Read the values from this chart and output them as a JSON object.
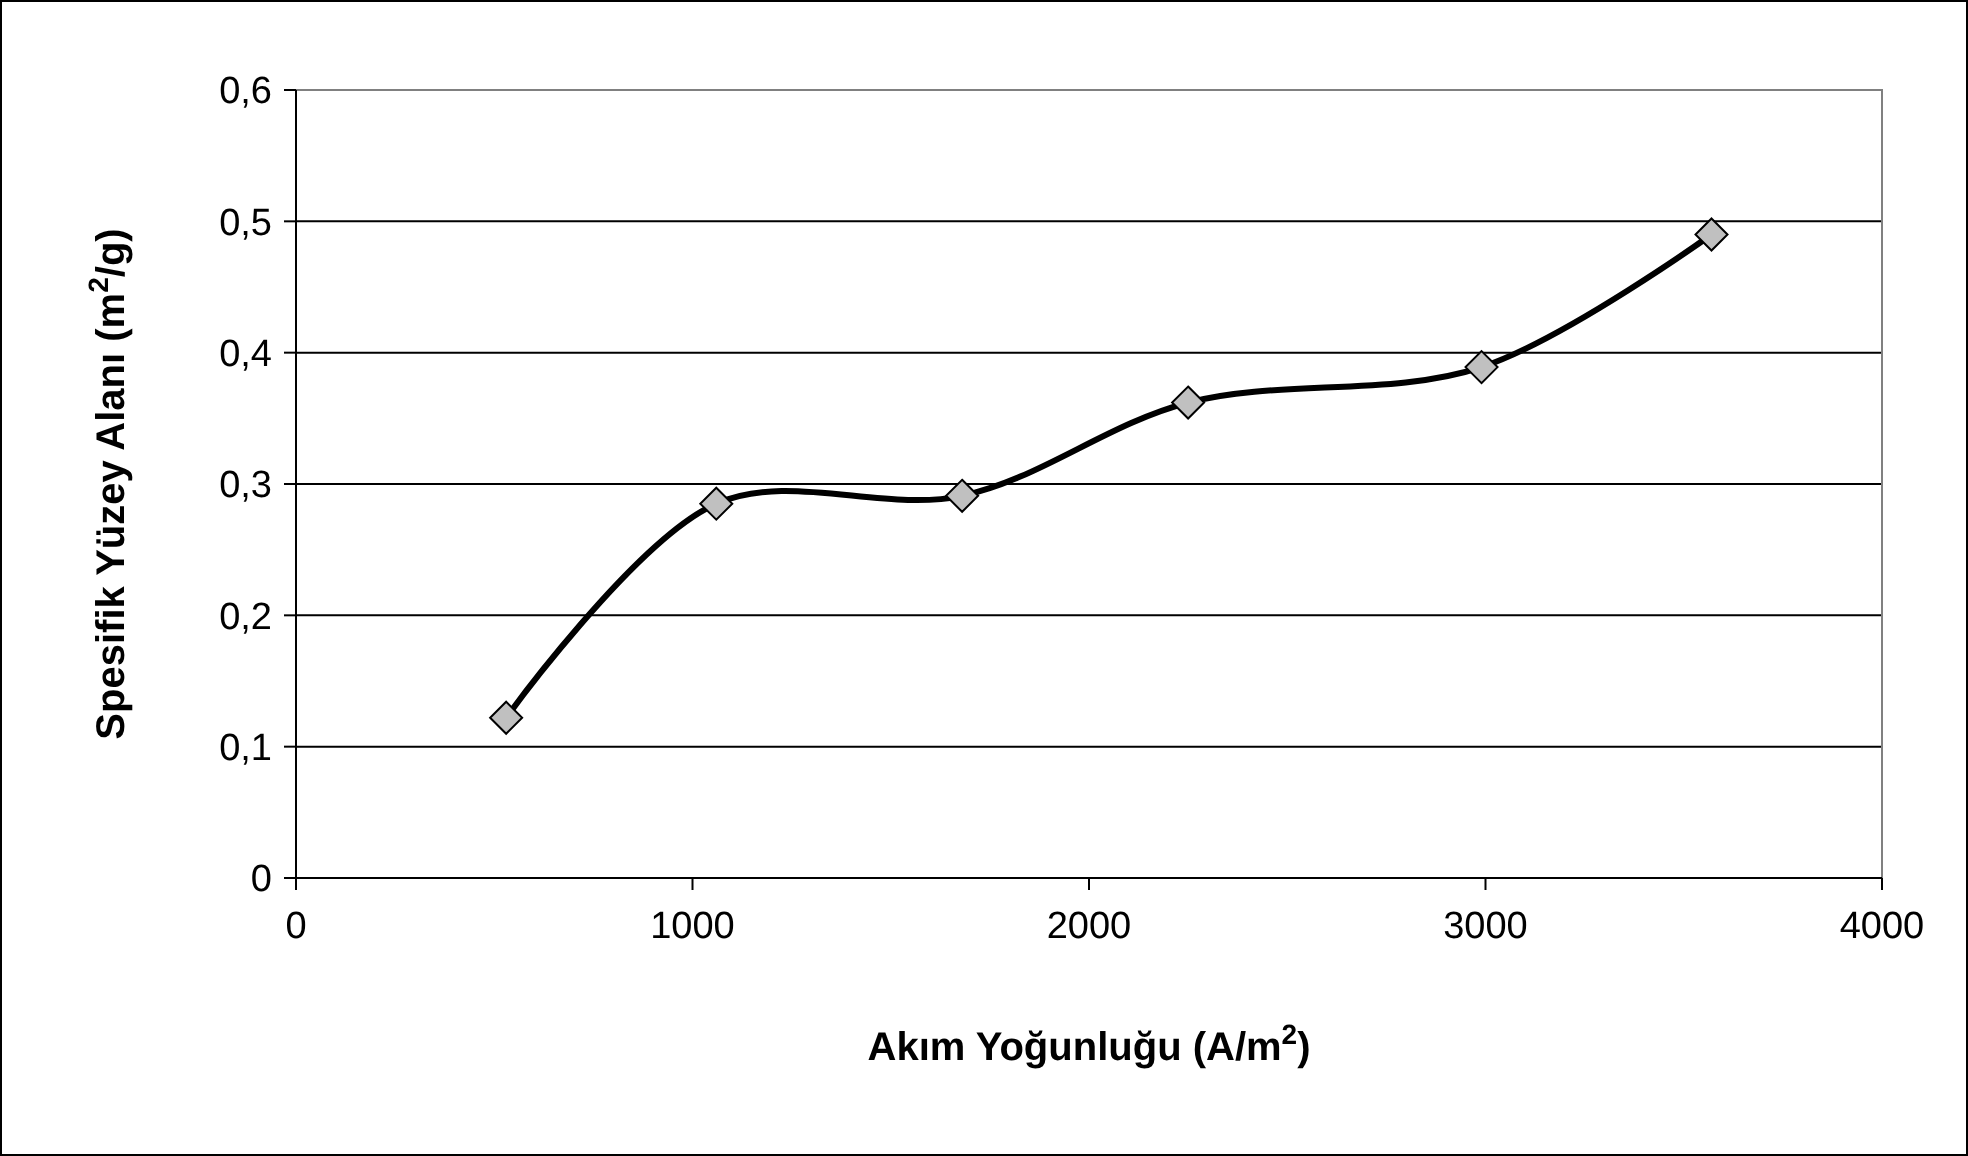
{
  "chart_data": {
    "type": "line",
    "xlabel": "Akım Yoğunluğu (A/m$^{2}$)",
    "ylabel": "Spesifik Yüzey Alanı (m$^{2}$/g)",
    "x": [
      530,
      1060,
      1680,
      2250,
      2990,
      3570
    ],
    "series": [
      {
        "color": "#000000",
        "values": [
          0.122,
          0.285,
          0.291,
          0.362,
          0.389,
          0.49
        ]
      }
    ],
    "xlim": [
      0,
      4000
    ],
    "xticks": [
      0,
      1000,
      2000,
      3000,
      4000
    ],
    "ylim": [
      0,
      0.6
    ],
    "yticks": [
      0,
      {
        "value": 0.1,
        "label": "0,1"
      },
      {
        "value": 0.2,
        "label": "0,2"
      },
      {
        "value": 0.3,
        "label": "0,3"
      },
      {
        "value": 0.4,
        "label": "0,4"
      },
      {
        "value": 0.5,
        "label": "0,5"
      },
      {
        "value": 0.6,
        "label": "0,6"
      }
    ],
    "grid": "y",
    "marker": "diamond",
    "line_style": "solid"
  }
}
